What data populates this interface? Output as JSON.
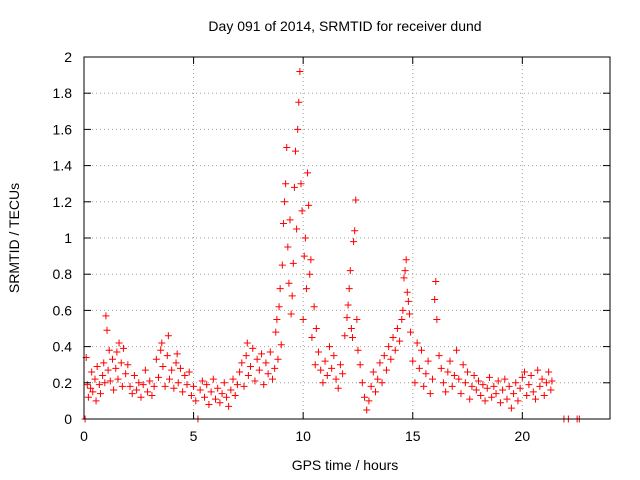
{
  "chart_data": {
    "type": "scatter",
    "title": "Day 091 of 2014, SRMTID for receiver dund",
    "xlabel": "GPS time / hours",
    "ylabel": "SRMTID / TECUs",
    "xlim": [
      0,
      24
    ],
    "ylim": [
      0,
      2
    ],
    "x_ticks": [
      0,
      5,
      10,
      15,
      20
    ],
    "y_ticks": [
      0,
      0.2,
      0.4,
      0.6,
      0.8,
      1,
      1.2,
      1.4,
      1.6,
      1.8,
      2
    ],
    "y_tick_labels": [
      "0",
      "0.2",
      "0.4",
      "0.6",
      "0.8",
      "1",
      "1.2",
      "1.4",
      "1.6",
      "1.8",
      "2"
    ],
    "grid": true,
    "marker": "+",
    "series": [
      {
        "name": "SRMTID",
        "color": "#ff0000",
        "points": [
          [
            0.05,
            0.0
          ],
          [
            0.1,
            0.34
          ],
          [
            0.15,
            0.19
          ],
          [
            0.2,
            0.12
          ],
          [
            0.3,
            0.17
          ],
          [
            0.35,
            0.26
          ],
          [
            0.4,
            0.15
          ],
          [
            0.5,
            0.22
          ],
          [
            0.55,
            0.1
          ],
          [
            0.6,
            0.29
          ],
          [
            0.7,
            0.19
          ],
          [
            0.75,
            0.14
          ],
          [
            0.85,
            0.24
          ],
          [
            0.9,
            0.31
          ],
          [
            0.95,
            0.2
          ],
          [
            1.0,
            0.57
          ],
          [
            1.05,
            0.49
          ],
          [
            1.1,
            0.27
          ],
          [
            1.15,
            0.38
          ],
          [
            1.2,
            0.21
          ],
          [
            1.3,
            0.33
          ],
          [
            1.35,
            0.16
          ],
          [
            1.45,
            0.28
          ],
          [
            1.5,
            0.37
          ],
          [
            1.55,
            0.22
          ],
          [
            1.6,
            0.42
          ],
          [
            1.7,
            0.31
          ],
          [
            1.75,
            0.18
          ],
          [
            1.8,
            0.39
          ],
          [
            1.9,
            0.25
          ],
          [
            2.0,
            0.3
          ],
          [
            2.1,
            0.18
          ],
          [
            2.2,
            0.14
          ],
          [
            2.3,
            0.24
          ],
          [
            2.4,
            0.16
          ],
          [
            2.5,
            0.2
          ],
          [
            2.6,
            0.12
          ],
          [
            2.7,
            0.19
          ],
          [
            2.8,
            0.27
          ],
          [
            2.9,
            0.15
          ],
          [
            3.0,
            0.21
          ],
          [
            3.1,
            0.13
          ],
          [
            3.2,
            0.18
          ],
          [
            3.3,
            0.33
          ],
          [
            3.4,
            0.23
          ],
          [
            3.5,
            0.38
          ],
          [
            3.55,
            0.42
          ],
          [
            3.6,
            0.29
          ],
          [
            3.7,
            0.18
          ],
          [
            3.8,
            0.35
          ],
          [
            3.85,
            0.46
          ],
          [
            3.9,
            0.22
          ],
          [
            4.0,
            0.27
          ],
          [
            4.1,
            0.17
          ],
          [
            4.2,
            0.31
          ],
          [
            4.25,
            0.36
          ],
          [
            4.3,
            0.2
          ],
          [
            4.4,
            0.28
          ],
          [
            4.5,
            0.15
          ],
          [
            4.6,
            0.24
          ],
          [
            4.7,
            0.19
          ],
          [
            4.8,
            0.26
          ],
          [
            4.9,
            0.13
          ],
          [
            5.0,
            0.18
          ],
          [
            5.1,
            0.1
          ],
          [
            5.2,
            0.0
          ],
          [
            5.3,
            0.16
          ],
          [
            5.4,
            0.21
          ],
          [
            5.5,
            0.12
          ],
          [
            5.6,
            0.19
          ],
          [
            5.7,
            0.08
          ],
          [
            5.8,
            0.15
          ],
          [
            5.9,
            0.22
          ],
          [
            6.0,
            0.11
          ],
          [
            6.1,
            0.17
          ],
          [
            6.2,
            0.09
          ],
          [
            6.3,
            0.14
          ],
          [
            6.4,
            0.2
          ],
          [
            6.5,
            0.12
          ],
          [
            6.6,
            0.07
          ],
          [
            6.7,
            0.16
          ],
          [
            6.8,
            0.22
          ],
          [
            6.9,
            0.13
          ],
          [
            7.0,
            0.19
          ],
          [
            7.1,
            0.26
          ],
          [
            7.2,
            0.31
          ],
          [
            7.3,
            0.18
          ],
          [
            7.4,
            0.35
          ],
          [
            7.45,
            0.42
          ],
          [
            7.5,
            0.24
          ],
          [
            7.6,
            0.29
          ],
          [
            7.7,
            0.39
          ],
          [
            7.8,
            0.21
          ],
          [
            7.9,
            0.33
          ],
          [
            8.0,
            0.27
          ],
          [
            8.1,
            0.36
          ],
          [
            8.2,
            0.19
          ],
          [
            8.3,
            0.31
          ],
          [
            8.4,
            0.25
          ],
          [
            8.5,
            0.37
          ],
          [
            8.6,
            0.22
          ],
          [
            8.7,
            0.28
          ],
          [
            8.75,
            0.48
          ],
          [
            8.8,
            0.55
          ],
          [
            8.85,
            0.33
          ],
          [
            8.9,
            0.62
          ],
          [
            8.95,
            0.72
          ],
          [
            9.0,
            0.41
          ],
          [
            9.05,
            0.85
          ],
          [
            9.1,
            1.08
          ],
          [
            9.15,
            1.2
          ],
          [
            9.2,
            1.3
          ],
          [
            9.25,
            1.5
          ],
          [
            9.3,
            0.95
          ],
          [
            9.35,
            0.75
          ],
          [
            9.4,
            1.1
          ],
          [
            9.45,
            0.58
          ],
          [
            9.5,
            0.68
          ],
          [
            9.55,
            0.86
          ],
          [
            9.6,
            1.28
          ],
          [
            9.65,
            1.48
          ],
          [
            9.7,
            1.05
          ],
          [
            9.75,
            1.6
          ],
          [
            9.8,
            1.75
          ],
          [
            9.85,
            1.92
          ],
          [
            9.9,
            1.3
          ],
          [
            9.95,
            1.15
          ],
          [
            10.0,
            0.55
          ],
          [
            10.05,
            0.9
          ],
          [
            10.1,
            1.0
          ],
          [
            10.15,
            0.72
          ],
          [
            10.2,
            1.36
          ],
          [
            10.25,
            1.18
          ],
          [
            10.3,
            0.8
          ],
          [
            10.35,
            0.88
          ],
          [
            10.4,
            0.45
          ],
          [
            10.5,
            0.62
          ],
          [
            10.55,
            0.3
          ],
          [
            10.6,
            0.5
          ],
          [
            10.7,
            0.37
          ],
          [
            10.8,
            0.27
          ],
          [
            10.9,
            0.2
          ],
          [
            11.0,
            0.32
          ],
          [
            11.1,
            0.24
          ],
          [
            11.2,
            0.4
          ],
          [
            11.3,
            0.28
          ],
          [
            11.4,
            0.35
          ],
          [
            11.5,
            0.22
          ],
          [
            11.6,
            0.17
          ],
          [
            11.7,
            0.3
          ],
          [
            11.8,
            0.25
          ],
          [
            11.9,
            0.46
          ],
          [
            12.0,
            0.56
          ],
          [
            12.05,
            0.63
          ],
          [
            12.1,
            0.72
          ],
          [
            12.15,
            0.82
          ],
          [
            12.2,
            0.5
          ],
          [
            12.25,
            0.45
          ],
          [
            12.3,
            0.98
          ],
          [
            12.35,
            1.04
          ],
          [
            12.4,
            1.21
          ],
          [
            12.45,
            0.55
          ],
          [
            12.5,
            0.38
          ],
          [
            12.6,
            0.3
          ],
          [
            12.7,
            0.2
          ],
          [
            12.8,
            0.12
          ],
          [
            12.9,
            0.05
          ],
          [
            13.0,
            0.1
          ],
          [
            13.1,
            0.18
          ],
          [
            13.2,
            0.26
          ],
          [
            13.3,
            0.15
          ],
          [
            13.4,
            0.22
          ],
          [
            13.5,
            0.31
          ],
          [
            13.6,
            0.2
          ],
          [
            13.7,
            0.35
          ],
          [
            13.8,
            0.27
          ],
          [
            13.9,
            0.4
          ],
          [
            14.0,
            0.33
          ],
          [
            14.1,
            0.45
          ],
          [
            14.2,
            0.38
          ],
          [
            14.3,
            0.5
          ],
          [
            14.4,
            0.43
          ],
          [
            14.5,
            0.55
          ],
          [
            14.55,
            0.6
          ],
          [
            14.6,
            0.78
          ],
          [
            14.65,
            0.82
          ],
          [
            14.7,
            0.88
          ],
          [
            14.75,
            0.7
          ],
          [
            14.8,
            0.65
          ],
          [
            14.85,
            0.58
          ],
          [
            14.9,
            0.48
          ],
          [
            15.0,
            0.32
          ],
          [
            15.1,
            0.2
          ],
          [
            15.2,
            0.42
          ],
          [
            15.3,
            0.28
          ],
          [
            15.4,
            0.38
          ],
          [
            15.5,
            0.18
          ],
          [
            15.6,
            0.25
          ],
          [
            15.7,
            0.32
          ],
          [
            15.8,
            0.14
          ],
          [
            15.9,
            0.22
          ],
          [
            16.0,
            0.66
          ],
          [
            16.05,
            0.76
          ],
          [
            16.1,
            0.55
          ],
          [
            16.2,
            0.35
          ],
          [
            16.3,
            0.28
          ],
          [
            16.4,
            0.2
          ],
          [
            16.5,
            0.15
          ],
          [
            16.6,
            0.26
          ],
          [
            16.7,
            0.32
          ],
          [
            16.8,
            0.18
          ],
          [
            16.9,
            0.24
          ],
          [
            17.0,
            0.38
          ],
          [
            17.1,
            0.22
          ],
          [
            17.2,
            0.14
          ],
          [
            17.3,
            0.3
          ],
          [
            17.4,
            0.2
          ],
          [
            17.5,
            0.26
          ],
          [
            17.6,
            0.11
          ],
          [
            17.7,
            0.18
          ],
          [
            17.8,
            0.24
          ],
          [
            17.9,
            0.16
          ],
          [
            18.0,
            0.21
          ],
          [
            18.1,
            0.13
          ],
          [
            18.2,
            0.19
          ],
          [
            18.3,
            0.1
          ],
          [
            18.4,
            0.17
          ],
          [
            18.5,
            0.23
          ],
          [
            18.6,
            0.12
          ],
          [
            18.7,
            0.18
          ],
          [
            18.8,
            0.14
          ],
          [
            18.9,
            0.21
          ],
          [
            19.0,
            0.09
          ],
          [
            19.1,
            0.16
          ],
          [
            19.2,
            0.22
          ],
          [
            19.3,
            0.11
          ],
          [
            19.4,
            0.18
          ],
          [
            19.5,
            0.06
          ],
          [
            19.6,
            0.14
          ],
          [
            19.7,
            0.2
          ],
          [
            19.8,
            0.1
          ],
          [
            19.9,
            0.17
          ],
          [
            20.0,
            0.23
          ],
          [
            20.1,
            0.26
          ],
          [
            20.2,
            0.13
          ],
          [
            20.3,
            0.19
          ],
          [
            20.4,
            0.24
          ],
          [
            20.5,
            0.15
          ],
          [
            20.6,
            0.11
          ],
          [
            20.7,
            0.27
          ],
          [
            20.8,
            0.18
          ],
          [
            20.9,
            0.22
          ],
          [
            21.0,
            0.13
          ],
          [
            21.1,
            0.2
          ],
          [
            21.2,
            0.26
          ],
          [
            21.3,
            0.16
          ],
          [
            21.35,
            0.21
          ],
          [
            21.9,
            0.0
          ],
          [
            22.1,
            0.0
          ],
          [
            22.5,
            0.0
          ],
          [
            22.6,
            0.0
          ]
        ]
      }
    ]
  }
}
